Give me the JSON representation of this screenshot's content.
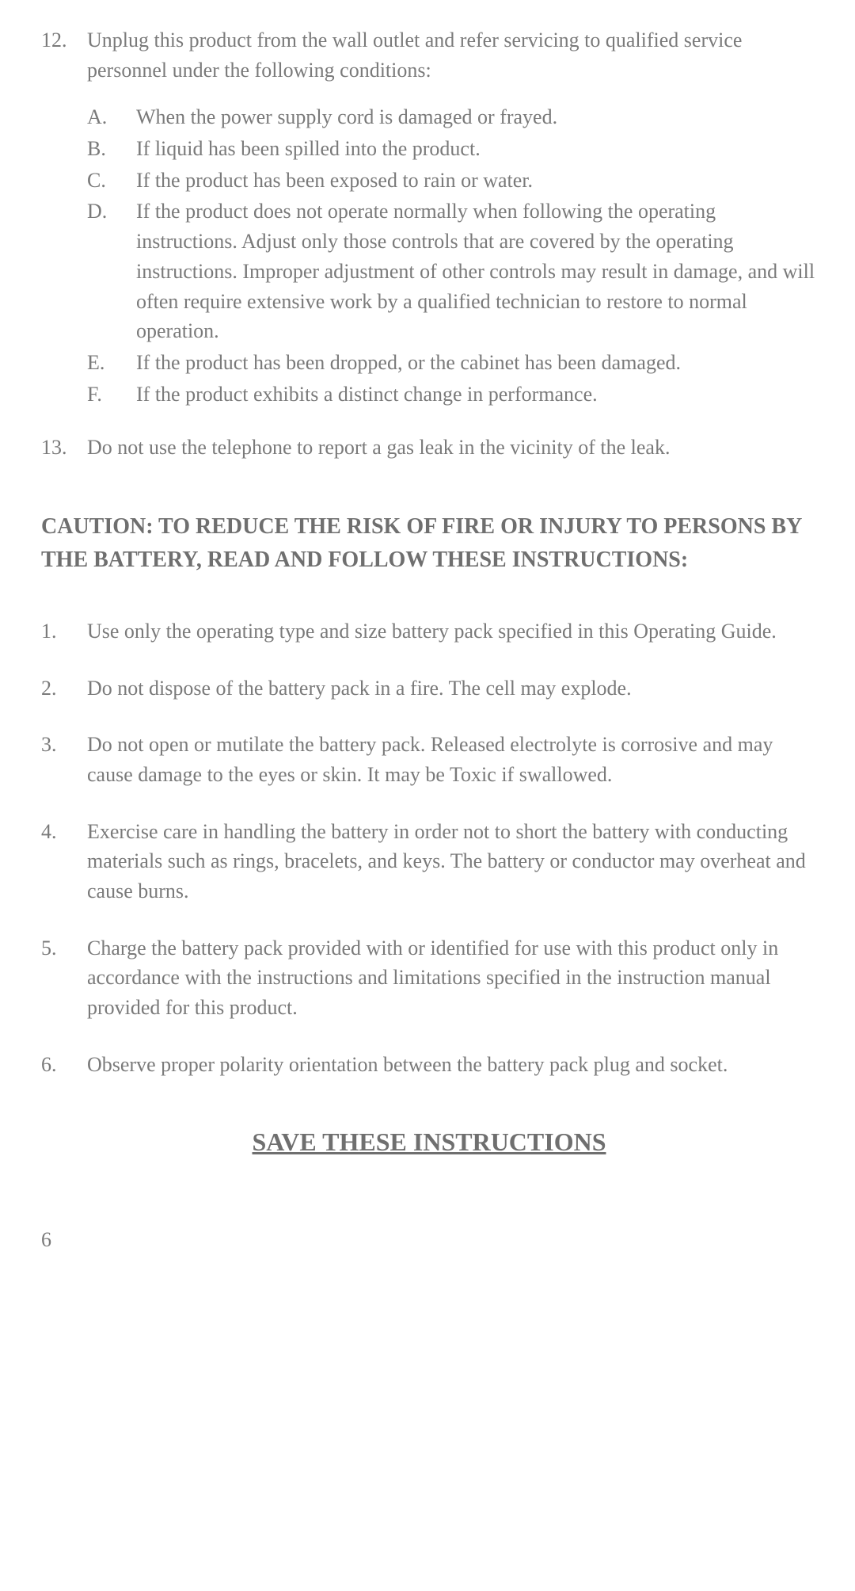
{
  "colors": {
    "text": "#7a7a7a",
    "heading": "#6f6f6f",
    "background": "#ffffff"
  },
  "typography": {
    "body_fontsize_pt": 19,
    "heading_fontsize_pt": 21,
    "save_fontsize_pt": 24,
    "font_family": "Georgia, 'Times New Roman', serif"
  },
  "top_list": [
    {
      "num": "12.",
      "text": "Unplug this product from the wall outlet and refer servicing to qualified service personnel under the following conditions:",
      "subitems": [
        {
          "letter": "A.",
          "text": "When the power supply cord is damaged or frayed."
        },
        {
          "letter": "B.",
          "text": "If liquid has been spilled into the product."
        },
        {
          "letter": "C.",
          "text": "If the product has been exposed to rain or water."
        },
        {
          "letter": "D.",
          "text": "If the product does not operate normally when following the operating instructions. Adjust only those controls that are covered by the operating instructions. Improper adjustment of other controls may result in damage, and will often require extensive work by a qualified technician to restore to normal operation."
        },
        {
          "letter": "E.",
          "text": "If the product has been dropped, or the cabinet has been damaged."
        },
        {
          "letter": "F.",
          "text": "If the product exhibits a distinct change in performance."
        }
      ]
    },
    {
      "num": "13.",
      "text": "Do not use the telephone to report a gas leak in the vicinity of the leak.",
      "subitems": []
    }
  ],
  "caution_heading": "CAUTION: TO REDUCE THE RISK OF FIRE OR INJURY TO PERSONS BY THE BATTERY, READ AND FOLLOW THESE INSTRUCTIONS:",
  "battery_list": [
    {
      "num": "1.",
      "text": "Use only the operating type and size battery pack specified in this Operating Guide."
    },
    {
      "num": "2.",
      "text": "Do not dispose of the battery pack in a fire. The cell may explode."
    },
    {
      "num": "3.",
      "text": "Do not open or mutilate the battery pack. Released electrolyte is corrosive and may cause damage to the eyes or skin. It may be Toxic if swallowed."
    },
    {
      "num": "4.",
      "text": "Exercise care in handling the battery in order not to short the battery with conducting materials such as rings, bracelets, and keys. The battery or conductor may overheat and cause burns."
    },
    {
      "num": "5.",
      "text": "Charge the battery pack provided with or identified for use with this product only in accordance with the instructions and limitations specified in the instruction manual provided for this product."
    },
    {
      "num": "6.",
      "text": "Observe proper polarity orientation between the battery pack plug and socket."
    }
  ],
  "save_heading": "SAVE THESE INSTRUCTIONS",
  "page_number": "6"
}
